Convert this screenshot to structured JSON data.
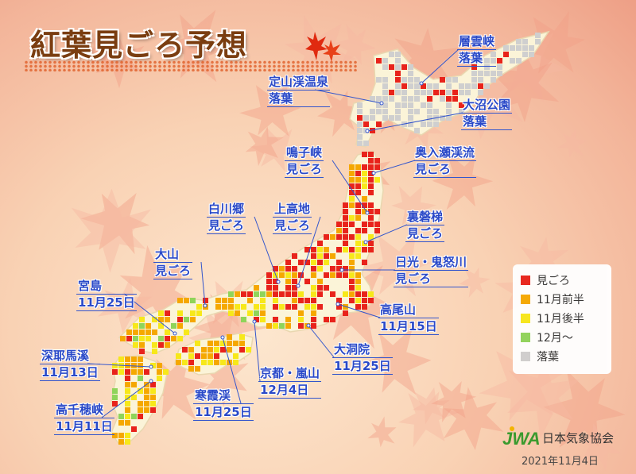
{
  "title": "紅葉見ごろ予想",
  "annotations": [
    {
      "name": "層雲峡",
      "status": "落葉"
    },
    {
      "name": "定山渓温泉",
      "status": "落葉"
    },
    {
      "name": "大沼公園",
      "status": "落葉"
    },
    {
      "name": "鳴子峡",
      "status": "見ごろ"
    },
    {
      "name": "奥入瀬渓流",
      "status": "見ごろ"
    },
    {
      "name": "白川郷",
      "status": "見ごろ"
    },
    {
      "name": "上高地",
      "status": "見ごろ"
    },
    {
      "name": "裏磐梯",
      "status": "見ごろ"
    },
    {
      "name": "大山",
      "status": "見ごろ"
    },
    {
      "name": "日光・鬼怒川",
      "status": "見ごろ"
    },
    {
      "name": "宮島",
      "status": "11月25日"
    },
    {
      "name": "高尾山",
      "status": "11月15日"
    },
    {
      "name": "大洞院",
      "status": "11月25日"
    },
    {
      "name": "京都・嵐山",
      "status": "12月4日"
    },
    {
      "name": "深耶馬溪",
      "status": "11月13日"
    },
    {
      "name": "寒霞渓",
      "status": "11月25日"
    },
    {
      "name": "高千穂峡",
      "status": "11月11日"
    }
  ],
  "legend": [
    {
      "label": "見ごろ",
      "color": "#e8231b"
    },
    {
      "label": "11月前半",
      "color": "#f5a800"
    },
    {
      "label": "11月後半",
      "color": "#f7e81a"
    },
    {
      "label": "12月～",
      "color": "#8fd45a"
    },
    {
      "label": "落葉",
      "color": "#cfcfcf"
    }
  ],
  "organization": "日本気象協会",
  "date": "2021年11月4日"
}
